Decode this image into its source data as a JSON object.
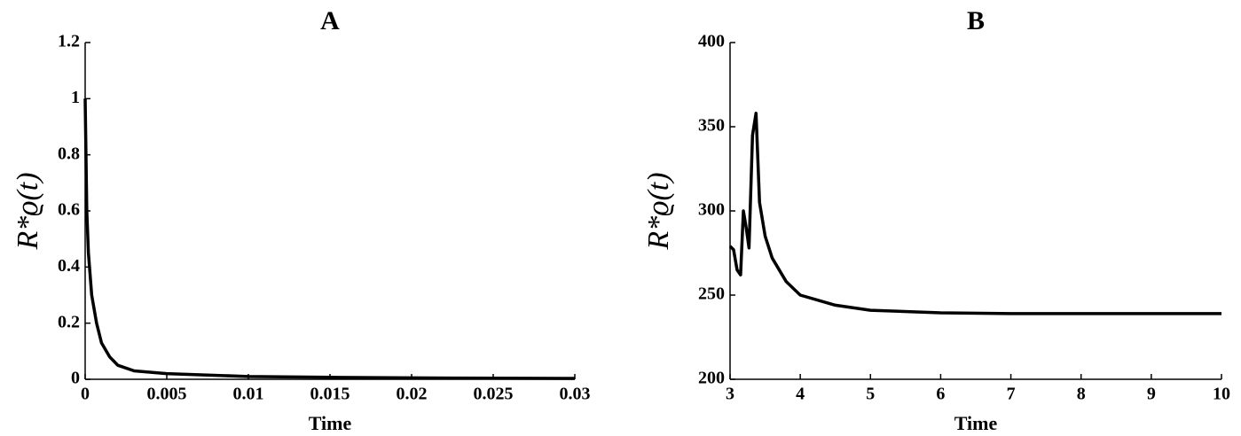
{
  "chart_data": [
    {
      "type": "line",
      "title": "A",
      "xlabel": "Time",
      "ylabel": "R*ϱ(t)",
      "x": [
        0,
        0.0001,
        0.0002,
        0.0004,
        0.0007,
        0.001,
        0.0015,
        0.002,
        0.003,
        0.005,
        0.01,
        0.015,
        0.02,
        0.025,
        0.03
      ],
      "series": [
        {
          "color": "#000000",
          "values": [
            1,
            0.6,
            0.45,
            0.3,
            0.2,
            0.13,
            0.08,
            0.05,
            0.03,
            0.02,
            0.01,
            0.007,
            0.005,
            0.004,
            0.003
          ]
        }
      ],
      "xlim": [
        0,
        0.03
      ],
      "xticks": [
        0,
        0.005,
        0.01,
        0.015,
        0.02,
        0.025,
        0.03
      ],
      "ylim": [
        0,
        1.2
      ],
      "yticks": [
        0,
        0.2,
        0.4,
        0.6,
        0.8,
        1,
        1.2
      ]
    },
    {
      "type": "line",
      "title": "B",
      "xlabel": "Time",
      "ylabel": "R*ϱ(t)",
      "x": [
        3,
        3.05,
        3.1,
        3.15,
        3.19,
        3.23,
        3.27,
        3.32,
        3.37,
        3.42,
        3.5,
        3.6,
        3.8,
        4,
        4.5,
        5,
        6,
        7,
        8,
        9,
        10
      ],
      "series": [
        {
          "color": "#000000",
          "values": [
            279,
            277,
            265,
            262,
            300,
            290,
            278,
            345,
            358,
            305,
            285,
            272,
            258,
            250,
            244,
            241,
            239.5,
            239,
            239,
            239,
            239
          ]
        }
      ],
      "xlim": [
        3,
        10
      ],
      "xticks": [
        3,
        4,
        5,
        6,
        7,
        8,
        9,
        10
      ],
      "ylim": [
        200,
        400
      ],
      "yticks": [
        200,
        250,
        300,
        350,
        400
      ]
    }
  ]
}
